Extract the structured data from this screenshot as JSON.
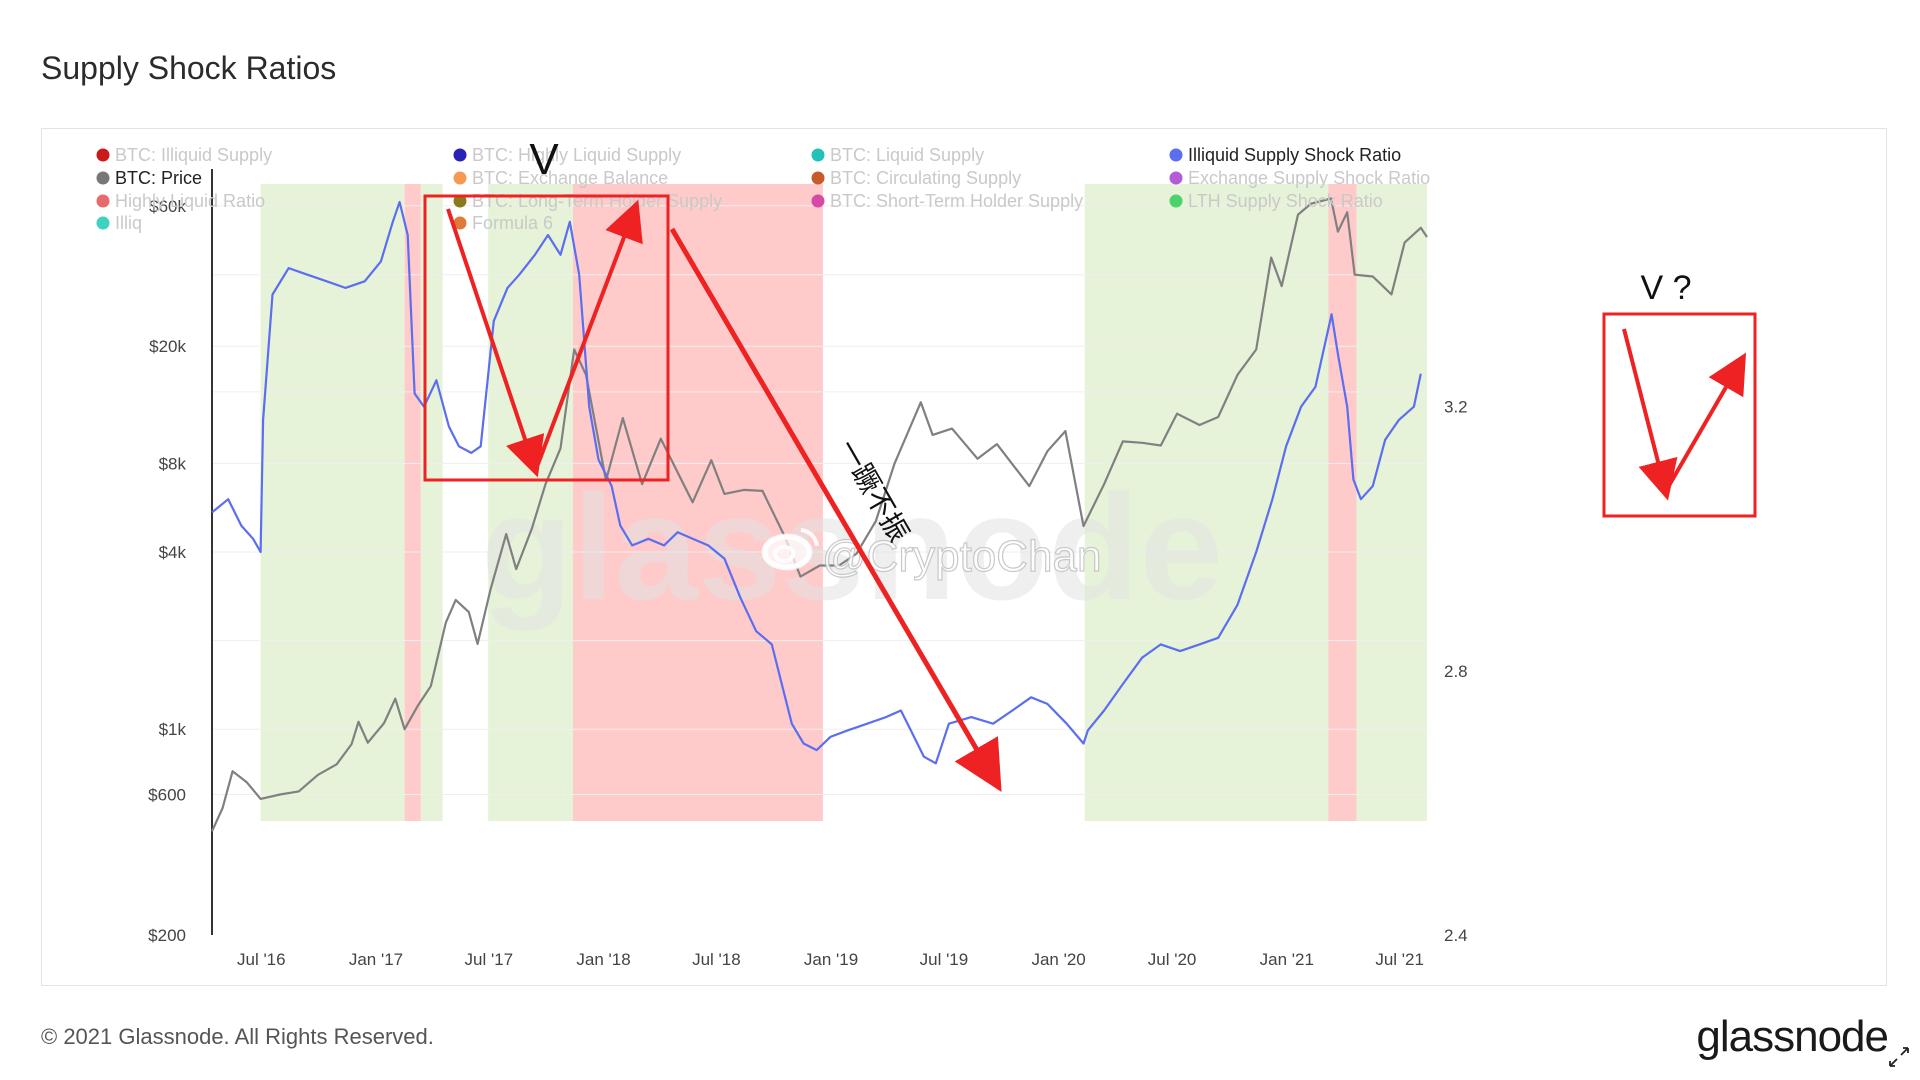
{
  "page": {
    "title": "Supply Shock Ratios",
    "copyright": "© 2021 Glassnode. All Rights Reserved.",
    "brand": "glassnode",
    "watermark": "glassnode",
    "weibo_handle": "@CryptoChan"
  },
  "chart_data": {
    "type": "line",
    "title": "Supply Shock Ratios",
    "x_ticks": [
      "Jul '16",
      "Jan '17",
      "Jul '17",
      "Jan '18",
      "Jul '18",
      "Jan '19",
      "Jul '19",
      "Jan '20",
      "Jul '20",
      "Jan '21",
      "Jul '21"
    ],
    "y_left": {
      "scale": "log",
      "ticks": [
        "$200",
        "$600",
        "$1k",
        "$4k",
        "$8k",
        "$20k",
        "$60k"
      ],
      "tick_values": [
        200,
        600,
        1000,
        4000,
        8000,
        20000,
        60000
      ],
      "range": [
        200,
        80000
      ]
    },
    "y_right": {
      "scale": "linear",
      "ticks": [
        "2.4",
        "2.8",
        "3.2"
      ],
      "tick_values": [
        2.4,
        2.8,
        3.2
      ],
      "range": [
        2.4,
        3.56
      ]
    },
    "legend": [
      {
        "name": "BTC: Illiquid Supply",
        "color": "#cc1a1a",
        "active": false
      },
      {
        "name": "BTC: Highly Liquid Supply",
        "color": "#2a22b8",
        "active": false
      },
      {
        "name": "BTC: Liquid Supply",
        "color": "#22c2b8",
        "active": false
      },
      {
        "name": "Illiquid Supply Shock Ratio",
        "color": "#5b6ef0",
        "active": true
      },
      {
        "name": "BTC: Price",
        "color": "#777777",
        "active": true
      },
      {
        "name": "BTC: Exchange Balance",
        "color": "#f59a52",
        "active": false
      },
      {
        "name": "BTC: Circulating Supply",
        "color": "#c65a2a",
        "active": false
      },
      {
        "name": "Exchange Supply Shock Ratio",
        "color": "#b45cd6",
        "active": false
      },
      {
        "name": "Highly Liquid Ratio",
        "color": "#e96a6a",
        "active": false
      },
      {
        "name": "BTC: Long-Term Holder Supply",
        "color": "#8a7a1e",
        "active": false
      },
      {
        "name": "BTC: Short-Term Holder Supply",
        "color": "#d64aa6",
        "active": false
      },
      {
        "name": "LTH Supply Shock Ratio",
        "color": "#4cd26a",
        "active": false
      },
      {
        "name": "Illiq",
        "color": "#3ed3c0",
        "active": false
      },
      {
        "name": "Formula 6",
        "color": "#e07a3a",
        "active": false
      }
    ],
    "series": [
      {
        "name": "Illiquid Supply Shock Ratio",
        "axis": "right",
        "color": "#5b6ef0",
        "points": [
          [
            "2016-05-15",
            3.04
          ],
          [
            "2016-06-10",
            3.06
          ],
          [
            "2016-07-01",
            3.02
          ],
          [
            "2016-07-20",
            3.0
          ],
          [
            "2016-08-01",
            2.98
          ],
          [
            "2016-08-05",
            3.18
          ],
          [
            "2016-08-20",
            3.37
          ],
          [
            "2016-09-15",
            3.41
          ],
          [
            "2016-10-15",
            3.4
          ],
          [
            "2016-11-15",
            3.39
          ],
          [
            "2016-12-15",
            3.38
          ],
          [
            "2017-01-15",
            3.39
          ],
          [
            "2017-02-10",
            3.42
          ],
          [
            "2017-03-01",
            3.48
          ],
          [
            "2017-03-12",
            3.51
          ],
          [
            "2017-03-25",
            3.46
          ],
          [
            "2017-04-05",
            3.22
          ],
          [
            "2017-04-20",
            3.2
          ],
          [
            "2017-05-10",
            3.24
          ],
          [
            "2017-05-30",
            3.17
          ],
          [
            "2017-06-15",
            3.14
          ],
          [
            "2017-07-05",
            3.13
          ],
          [
            "2017-07-20",
            3.14
          ],
          [
            "2017-08-10",
            3.33
          ],
          [
            "2017-09-01",
            3.38
          ],
          [
            "2017-09-20",
            3.4
          ],
          [
            "2017-10-15",
            3.43
          ],
          [
            "2017-11-05",
            3.46
          ],
          [
            "2017-11-25",
            3.43
          ],
          [
            "2017-12-10",
            3.48
          ],
          [
            "2017-12-25",
            3.4
          ],
          [
            "2018-01-10",
            3.2
          ],
          [
            "2018-01-25",
            3.12
          ],
          [
            "2018-02-15",
            3.08
          ],
          [
            "2018-03-01",
            3.02
          ],
          [
            "2018-03-20",
            2.99
          ],
          [
            "2018-04-15",
            3.0
          ],
          [
            "2018-05-10",
            2.99
          ],
          [
            "2018-06-01",
            3.01
          ],
          [
            "2018-06-25",
            3.0
          ],
          [
            "2018-07-20",
            2.99
          ],
          [
            "2018-08-15",
            2.97
          ],
          [
            "2018-09-10",
            2.91
          ],
          [
            "2018-10-05",
            2.86
          ],
          [
            "2018-10-30",
            2.84
          ],
          [
            "2018-11-15",
            2.78
          ],
          [
            "2018-12-01",
            2.72
          ],
          [
            "2018-12-20",
            2.69
          ],
          [
            "2019-01-10",
            2.68
          ],
          [
            "2019-02-01",
            2.7
          ],
          [
            "2019-03-01",
            2.71
          ],
          [
            "2019-04-01",
            2.72
          ],
          [
            "2019-05-01",
            2.73
          ],
          [
            "2019-05-25",
            2.74
          ],
          [
            "2019-06-10",
            2.71
          ],
          [
            "2019-07-01",
            2.67
          ],
          [
            "2019-07-20",
            2.66
          ],
          [
            "2019-08-10",
            2.72
          ],
          [
            "2019-09-15",
            2.73
          ],
          [
            "2019-10-20",
            2.72
          ],
          [
            "2019-11-20",
            2.74
          ],
          [
            "2019-12-20",
            2.76
          ],
          [
            "2020-01-15",
            2.75
          ],
          [
            "2020-02-15",
            2.72
          ],
          [
            "2020-03-13",
            2.69
          ],
          [
            "2020-03-20",
            2.71
          ],
          [
            "2020-04-15",
            2.74
          ],
          [
            "2020-05-15",
            2.78
          ],
          [
            "2020-06-15",
            2.82
          ],
          [
            "2020-07-15",
            2.84
          ],
          [
            "2020-08-15",
            2.83
          ],
          [
            "2020-09-15",
            2.84
          ],
          [
            "2020-10-15",
            2.85
          ],
          [
            "2020-11-15",
            2.9
          ],
          [
            "2020-12-15",
            2.98
          ],
          [
            "2021-01-10",
            3.06
          ],
          [
            "2021-02-01",
            3.14
          ],
          [
            "2021-02-25",
            3.2
          ],
          [
            "2021-03-20",
            3.23
          ],
          [
            "2021-04-15",
            3.34
          ],
          [
            "2021-04-25",
            3.28
          ],
          [
            "2021-05-10",
            3.2
          ],
          [
            "2021-05-20",
            3.09
          ],
          [
            "2021-06-01",
            3.06
          ],
          [
            "2021-06-20",
            3.08
          ],
          [
            "2021-07-10",
            3.15
          ],
          [
            "2021-08-01",
            3.18
          ],
          [
            "2021-08-25",
            3.2
          ],
          [
            "2021-09-05",
            3.25
          ]
        ]
      },
      {
        "name": "BTC: Price",
        "axis": "left",
        "color": "#808080",
        "points": [
          [
            "2016-05-15",
            450
          ],
          [
            "2016-06-01",
            540
          ],
          [
            "2016-06-17",
            720
          ],
          [
            "2016-07-10",
            660
          ],
          [
            "2016-08-01",
            580
          ],
          [
            "2016-09-01",
            600
          ],
          [
            "2016-10-01",
            615
          ],
          [
            "2016-11-01",
            700
          ],
          [
            "2016-12-01",
            760
          ],
          [
            "2016-12-25",
            890
          ],
          [
            "2017-01-05",
            1060
          ],
          [
            "2017-01-20",
            900
          ],
          [
            "2017-02-15",
            1050
          ],
          [
            "2017-03-05",
            1270
          ],
          [
            "2017-03-20",
            1000
          ],
          [
            "2017-04-10",
            1200
          ],
          [
            "2017-05-01",
            1400
          ],
          [
            "2017-05-25",
            2300
          ],
          [
            "2017-06-10",
            2750
          ],
          [
            "2017-07-01",
            2500
          ],
          [
            "2017-07-15",
            1950
          ],
          [
            "2017-08-05",
            3000
          ],
          [
            "2017-08-30",
            4600
          ],
          [
            "2017-09-15",
            3500
          ],
          [
            "2017-10-10",
            4800
          ],
          [
            "2017-11-01",
            6800
          ],
          [
            "2017-11-25",
            9000
          ],
          [
            "2017-12-17",
            19500
          ],
          [
            "2018-01-05",
            16000
          ],
          [
            "2018-02-06",
            7000
          ],
          [
            "2018-03-05",
            11400
          ],
          [
            "2018-04-05",
            6800
          ],
          [
            "2018-05-05",
            9700
          ],
          [
            "2018-06-25",
            5900
          ],
          [
            "2018-07-25",
            8200
          ],
          [
            "2018-08-15",
            6300
          ],
          [
            "2018-09-15",
            6500
          ],
          [
            "2018-10-15",
            6450
          ],
          [
            "2018-11-20",
            4500
          ],
          [
            "2018-12-15",
            3300
          ],
          [
            "2019-01-15",
            3600
          ],
          [
            "2019-02-15",
            3600
          ],
          [
            "2019-03-15",
            3950
          ],
          [
            "2019-04-15",
            5100
          ],
          [
            "2019-05-15",
            8000
          ],
          [
            "2019-06-26",
            12900
          ],
          [
            "2019-07-15",
            10000
          ],
          [
            "2019-08-15",
            10500
          ],
          [
            "2019-09-25",
            8300
          ],
          [
            "2019-10-26",
            9300
          ],
          [
            "2019-12-17",
            6700
          ],
          [
            "2020-01-15",
            8800
          ],
          [
            "2020-02-13",
            10300
          ],
          [
            "2020-03-13",
            4900
          ],
          [
            "2020-04-15",
            6800
          ],
          [
            "2020-05-15",
            9500
          ],
          [
            "2020-06-15",
            9400
          ],
          [
            "2020-07-15",
            9200
          ],
          [
            "2020-08-10",
            11800
          ],
          [
            "2020-09-15",
            10800
          ],
          [
            "2020-10-15",
            11500
          ],
          [
            "2020-11-15",
            16000
          ],
          [
            "2020-12-15",
            19500
          ],
          [
            "2021-01-08",
            40000
          ],
          [
            "2021-01-25",
            32000
          ],
          [
            "2021-02-20",
            56000
          ],
          [
            "2021-03-13",
            61000
          ],
          [
            "2021-04-14",
            63500
          ],
          [
            "2021-04-25",
            49000
          ],
          [
            "2021-05-10",
            57000
          ],
          [
            "2021-05-22",
            35000
          ],
          [
            "2021-06-20",
            34500
          ],
          [
            "2021-07-20",
            30000
          ],
          [
            "2021-08-10",
            45000
          ],
          [
            "2021-09-05",
            50500
          ],
          [
            "2021-09-15",
            47000
          ]
        ]
      }
    ],
    "bands": [
      {
        "from": "2016-08-01",
        "to": "2017-03-20",
        "color": "green"
      },
      {
        "from": "2017-03-20",
        "to": "2017-04-15",
        "color": "red"
      },
      {
        "from": "2017-04-15",
        "to": "2017-05-20",
        "color": "green"
      },
      {
        "from": "2017-08-01",
        "to": "2017-12-15",
        "color": "green"
      },
      {
        "from": "2017-12-15",
        "to": "2019-01-20",
        "color": "red"
      },
      {
        "from": "2020-03-15",
        "to": "2021-04-10",
        "color": "green"
      },
      {
        "from": "2021-04-10",
        "to": "2021-05-25",
        "color": "red"
      },
      {
        "from": "2021-05-25",
        "to": "2021-09-15",
        "color": "green"
      }
    ],
    "annotations": [
      {
        "text": "V",
        "date": "2017-06-20"
      },
      {
        "text": "V ?",
        "date": "2021-06-20"
      },
      {
        "text": "一蹶不振",
        "date": "2018-07-20"
      }
    ]
  }
}
